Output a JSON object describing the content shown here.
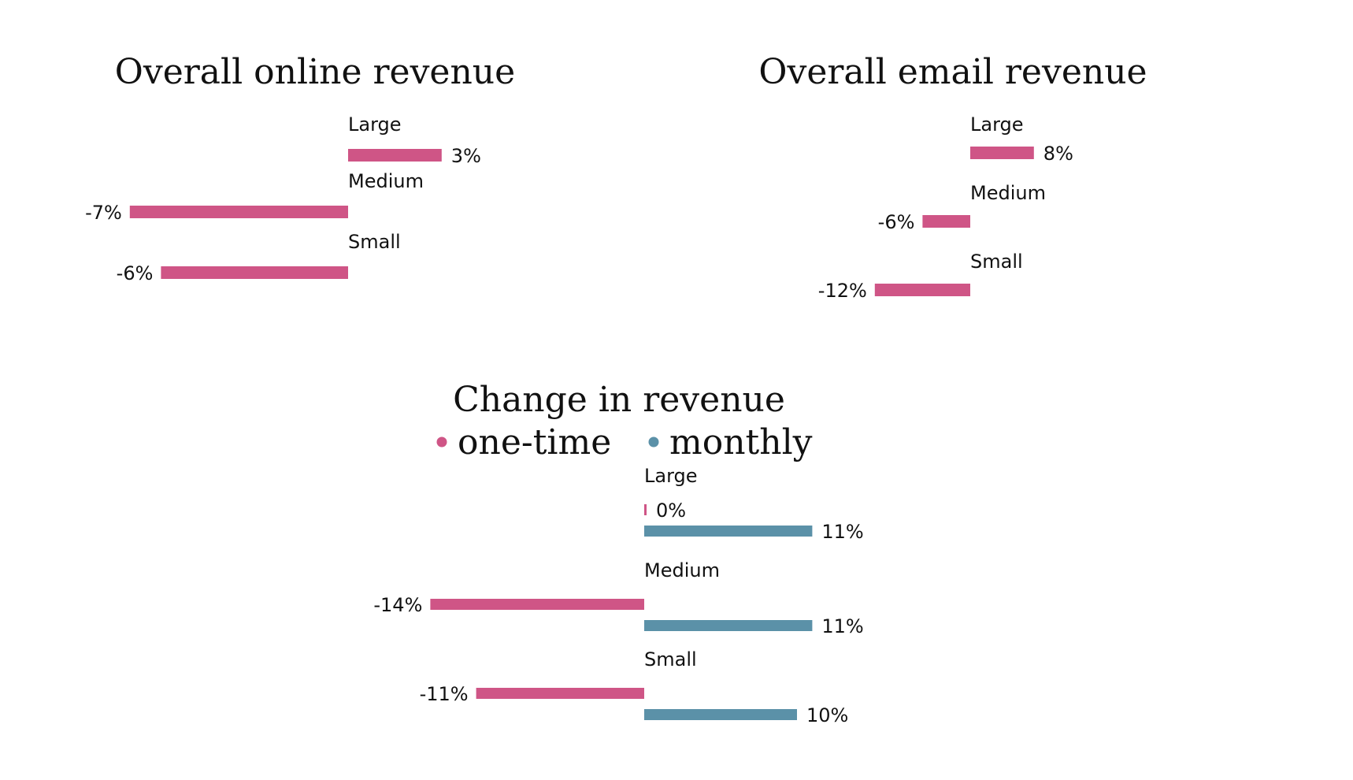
{
  "chart_data": [
    {
      "type": "bar",
      "orientation": "horizontal",
      "title": "Overall online revenue",
      "categories": [
        "Large",
        "Medium",
        "Small"
      ],
      "series": [
        {
          "values": [
            3,
            -7,
            -6
          ],
          "labels": [
            "3%",
            "-7%",
            "-6%"
          ],
          "color": "#cf5586"
        }
      ],
      "unit": "%",
      "xlim": [
        -7,
        3
      ],
      "grid": false
    },
    {
      "type": "bar",
      "orientation": "horizontal",
      "title": "Overall email revenue",
      "categories": [
        "Large",
        "Medium",
        "Small"
      ],
      "series": [
        {
          "values": [
            8,
            -6,
            -12
          ],
          "labels": [
            "8%",
            "-6%",
            "-12%"
          ],
          "color": "#cf5586"
        }
      ],
      "unit": "%",
      "xlim": [
        -12,
        8
      ],
      "grid": false
    },
    {
      "type": "bar",
      "orientation": "horizontal",
      "title": "Change in revenue",
      "categories": [
        "Large",
        "Medium",
        "Small"
      ],
      "legend": {
        "placement": "top",
        "entries": [
          "one-time",
          "monthly"
        ]
      },
      "series": [
        {
          "name": "one-time",
          "values": [
            0,
            -14,
            -11
          ],
          "labels": [
            "0%",
            "-14%",
            "-11%"
          ],
          "color": "#cf5586"
        },
        {
          "name": "monthly",
          "values": [
            11,
            11,
            10
          ],
          "labels": [
            "11%",
            "11%",
            "10%"
          ],
          "color": "#5b91a8"
        }
      ],
      "unit": "%",
      "xlim": [
        -14,
        11
      ],
      "grid": false
    }
  ]
}
